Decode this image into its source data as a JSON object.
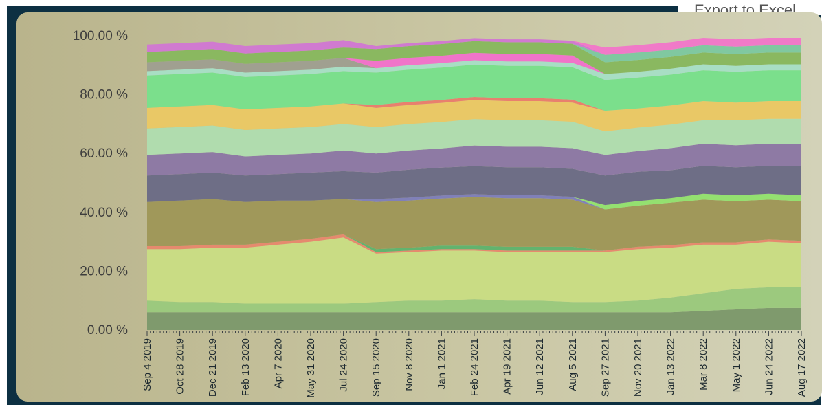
{
  "toolbar": {
    "export_label": "Export to Excel"
  },
  "chart_data": {
    "type": "area",
    "stacked": true,
    "percent": true,
    "title": "",
    "xlabel": "",
    "ylabel": "",
    "ylim": [
      0,
      100
    ],
    "ytick_labels": [
      "0.00 %",
      "20.00 %",
      "40.00 %",
      "60.00 %",
      "80.00 %",
      "100.00 %"
    ],
    "grid": false,
    "legend": "none",
    "x": [
      "Sep 4 2019",
      "Oct 28 2019",
      "Dec 21 2019",
      "Feb 13 2020",
      "Apr 7 2020",
      "May 31 2020",
      "Jul 24 2020",
      "Sep 15 2020",
      "Nov 8 2020",
      "Jan 1 2021",
      "Feb 24 2021",
      "Apr 19 2021",
      "Jun 12 2021",
      "Aug 5 2021",
      "Sep 27 2021",
      "Nov 20 2021",
      "Jan 13 2022",
      "Mar 8 2022",
      "May 1 2022",
      "Jun 24 2022",
      "Aug 17 2022"
    ],
    "series": [
      {
        "color": "#7f9a6d",
        "values": [
          6,
          6,
          6,
          6,
          6,
          6,
          6,
          6,
          6,
          6,
          6,
          6,
          6,
          6,
          6,
          6,
          6,
          6.5,
          7,
          7.5,
          7.5
        ]
      },
      {
        "color": "#9cc97e",
        "values": [
          4,
          3.5,
          3.5,
          3,
          3,
          3,
          3,
          3.5,
          4,
          4,
          4.5,
          4,
          4,
          3.5,
          3.5,
          4,
          5,
          6,
          7,
          7,
          7
        ]
      },
      {
        "color": "#c9dc84",
        "values": [
          17.5,
          18,
          18.5,
          19,
          20,
          21,
          22.5,
          16.5,
          16.5,
          17,
          16.5,
          16.5,
          16.5,
          17,
          17,
          17.5,
          17,
          16.5,
          15,
          15.5,
          15
        ]
      },
      {
        "color": "#e58a6e",
        "values": [
          1,
          1,
          1,
          1,
          1,
          1,
          1,
          0.5,
          0.5,
          0.5,
          0.5,
          0.5,
          0.5,
          0.5,
          0.5,
          0.8,
          0.8,
          0.8,
          0.8,
          0.8,
          0.8
        ]
      },
      {
        "color": "#62b36e",
        "values": [
          0,
          0,
          0,
          0,
          0,
          0,
          0,
          1,
          1,
          1.2,
          1.2,
          1.3,
          1.3,
          1.3,
          0,
          0,
          0,
          0,
          0,
          0,
          0
        ]
      },
      {
        "color": "#a0985a",
        "values": [
          15,
          15.5,
          15.5,
          14.5,
          14,
          13,
          12,
          16,
          16,
          16,
          16.5,
          16.5,
          16.5,
          16,
          14,
          14,
          14.5,
          14.5,
          14,
          13.5,
          13.5
        ]
      },
      {
        "color": "#8080b8",
        "values": [
          0,
          0,
          0,
          0,
          0,
          0,
          0,
          1,
          1,
          1,
          1,
          1,
          1,
          1,
          0,
          0,
          0,
          0,
          0,
          0,
          0
        ]
      },
      {
        "color": "#94e070",
        "values": [
          0,
          0,
          0,
          0,
          0,
          0,
          0,
          0,
          0,
          0,
          0,
          0,
          0,
          0,
          1.5,
          1.5,
          1.5,
          2,
          2,
          2,
          2
        ]
      },
      {
        "color": "#6e6e86",
        "values": [
          9,
          9,
          9,
          9,
          9,
          9.5,
          9.5,
          9,
          9.5,
          9.5,
          9.5,
          9.5,
          9.5,
          9.5,
          10,
          10,
          9.5,
          9.5,
          9.5,
          9.5,
          10
        ]
      },
      {
        "color": "#8e7aa4",
        "values": [
          7,
          7,
          7,
          6.5,
          6.5,
          6.5,
          7,
          6.5,
          6.5,
          6.5,
          7,
          7,
          7,
          7,
          7,
          7,
          7.5,
          7.5,
          7.5,
          7.5,
          7.5
        ]
      },
      {
        "color": "#b0dcae",
        "values": [
          9,
          9,
          9,
          9,
          9,
          9,
          9,
          9,
          9,
          9,
          9,
          9,
          9,
          9,
          8,
          8,
          8,
          8,
          8.5,
          8.5,
          8.5
        ]
      },
      {
        "color": "#e9c866",
        "values": [
          7,
          7,
          7,
          7,
          7,
          7,
          7,
          6.5,
          6.5,
          6.5,
          6.5,
          6.5,
          6.5,
          6.5,
          7,
          6.5,
          6.5,
          6.5,
          6,
          6,
          6
        ]
      },
      {
        "color": "#e8806e",
        "values": [
          0,
          0,
          0,
          0,
          0,
          0,
          0,
          1,
          1,
          1,
          1,
          1,
          1,
          1,
          0,
          0,
          0,
          0,
          0,
          0,
          0
        ]
      },
      {
        "color": "#7bdf8c",
        "values": [
          11,
          11,
          11,
          11,
          11,
          11,
          11,
          11,
          11,
          11,
          11,
          11,
          11,
          11,
          10.5,
          10.5,
          10.5,
          10.5,
          10.5,
          10.5,
          10.5
        ]
      },
      {
        "color": "#a8dec4",
        "values": [
          1.5,
          1.5,
          1.5,
          1.5,
          1.5,
          1.5,
          1.5,
          1.5,
          1.5,
          1.5,
          1.5,
          1.5,
          1.5,
          1.5,
          2,
          2,
          2,
          2,
          2,
          2,
          2
        ]
      },
      {
        "color": "#a0a090",
        "values": [
          3,
          3,
          3,
          3,
          3,
          3,
          3,
          0,
          0,
          0,
          0,
          0,
          0,
          0,
          0,
          0,
          0,
          0,
          0,
          0,
          0
        ]
      },
      {
        "color": "#f074c9",
        "values": [
          0,
          0,
          0,
          0,
          0,
          0,
          0,
          2.5,
          2.5,
          2.5,
          2.5,
          2.5,
          2.5,
          2.5,
          0,
          0,
          0,
          0,
          0,
          0,
          0
        ]
      },
      {
        "color": "#8ab860",
        "values": [
          3.5,
          3.5,
          3.5,
          3.5,
          3.5,
          3.5,
          3.5,
          4,
          4,
          4,
          4,
          4,
          4,
          4,
          4,
          4,
          4,
          4,
          4,
          4,
          4
        ]
      },
      {
        "color": "#80c8a0",
        "values": [
          0,
          0,
          0,
          0,
          0,
          0,
          0,
          0,
          0,
          0,
          0,
          0,
          0,
          0,
          2.5,
          2.5,
          2.5,
          2.5,
          2.5,
          2.5,
          2.5
        ]
      },
      {
        "color": "#d07ad0",
        "values": [
          2.5,
          2.5,
          2.5,
          2.5,
          2.5,
          2.5,
          2.5,
          1,
          1,
          1,
          1,
          1,
          1,
          1,
          0,
          0,
          0,
          0,
          0,
          0,
          0
        ]
      },
      {
        "color": "#f07ac8",
        "values": [
          0,
          0,
          0,
          0,
          0,
          0,
          0,
          0,
          0,
          0,
          0,
          0,
          0,
          0,
          2.5,
          2.5,
          2.5,
          2.5,
          2.5,
          2.5,
          2.5
        ]
      }
    ]
  }
}
